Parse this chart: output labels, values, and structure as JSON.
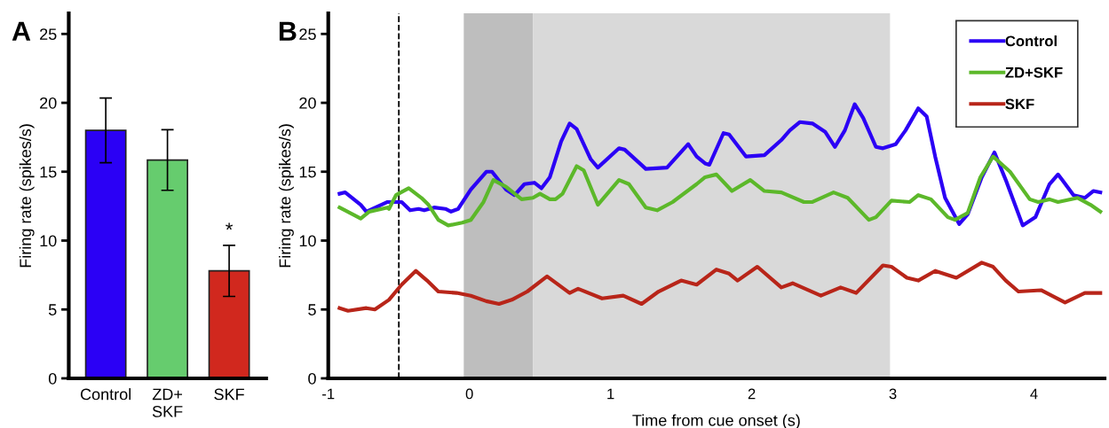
{
  "chart_data": [
    {
      "type": "bar",
      "title": "A",
      "ylabel": "Firing rate (spikes/s)",
      "categories": [
        "Control",
        "ZD+\nSKF",
        "SKF"
      ],
      "values": [
        18.0,
        15.85,
        7.8
      ],
      "errors": [
        2.35,
        2.2,
        1.85
      ],
      "colors": [
        "#2b00f5",
        "#66cc6e",
        "#d1281e"
      ],
      "ylim": [
        0,
        26.5
      ],
      "yticks": [
        0,
        5,
        10,
        15,
        20,
        25
      ],
      "grid": false,
      "annotations": [
        "*"
      ]
    },
    {
      "type": "line",
      "title": "B",
      "xlabel": "Time from cue onset (s)",
      "ylabel": "Firing rate (spikes/s)",
      "xlim": [
        -1,
        4.5
      ],
      "xticks": [
        -1,
        0,
        1,
        2,
        3,
        4
      ],
      "ylim": [
        0,
        26.5
      ],
      "yticks": [
        0,
        5,
        10,
        15,
        20,
        25
      ],
      "grid": false,
      "legend": "top right",
      "line_style": "solid",
      "marker": "none",
      "bands": [
        {
          "axis": "x",
          "from": -0.04,
          "to": 0.45,
          "color": "#bebebe"
        },
        {
          "axis": "x",
          "from": 0.45,
          "to": 2.98,
          "color": "#d9d9d9"
        }
      ],
      "ref_lines": [
        {
          "axis": "x",
          "value": -0.5,
          "color": "#000000",
          "line_style": "dashed"
        }
      ],
      "series": [
        {
          "name": "Control",
          "color": "#2b00f5",
          "x": [
            -0.92,
            -0.88,
            -0.77,
            -0.73,
            -0.58,
            -0.48,
            -0.42,
            -0.36,
            -0.32,
            -0.25,
            -0.17,
            -0.13,
            -0.08,
            0.01,
            0.12,
            0.16,
            0.26,
            0.32,
            0.39,
            0.46,
            0.51,
            0.57,
            0.65,
            0.71,
            0.76,
            0.86,
            0.91,
            1.06,
            1.1,
            1.25,
            1.4,
            1.55,
            1.61,
            1.67,
            1.7,
            1.8,
            1.84,
            1.96,
            2.09,
            2.21,
            2.27,
            2.34,
            2.43,
            2.52,
            2.59,
            2.66,
            2.73,
            2.79,
            2.88,
            2.93,
            3.02,
            3.09,
            3.18,
            3.24,
            3.3,
            3.37,
            3.47,
            3.53,
            3.63,
            3.72,
            3.8,
            3.92,
            4.01,
            4.11,
            4.17,
            4.2,
            4.28,
            4.36,
            4.42,
            4.47
          ],
          "values": [
            13.4,
            13.5,
            12.6,
            12.1,
            12.8,
            12.8,
            12.2,
            12.3,
            12.2,
            12.4,
            12.3,
            12.1,
            12.3,
            13.7,
            15.0,
            15.0,
            13.7,
            13.3,
            14.1,
            14.2,
            13.8,
            14.6,
            17.2,
            18.5,
            18.1,
            15.9,
            15.3,
            16.7,
            16.6,
            15.2,
            15.3,
            17.0,
            16.1,
            15.6,
            15.5,
            17.8,
            17.7,
            16.1,
            16.2,
            17.3,
            18.0,
            18.6,
            18.5,
            17.9,
            16.8,
            18.0,
            19.9,
            18.9,
            16.8,
            16.7,
            17.0,
            18.0,
            19.6,
            19.0,
            16.1,
            13.1,
            11.2,
            11.9,
            14.6,
            16.4,
            14.4,
            11.1,
            11.7,
            14.1,
            14.8,
            14.4,
            13.3,
            13.1,
            13.6,
            13.5
          ]
        },
        {
          "name": "ZD+SKF",
          "color": "#5cb82a",
          "x": [
            -0.92,
            -0.77,
            -0.71,
            -0.58,
            -0.57,
            -0.52,
            -0.43,
            -0.34,
            -0.29,
            -0.22,
            -0.15,
            -0.05,
            0.01,
            0.1,
            0.17,
            0.26,
            0.37,
            0.45,
            0.5,
            0.57,
            0.61,
            0.66,
            0.76,
            0.81,
            0.91,
            1.06,
            1.13,
            1.25,
            1.33,
            1.44,
            1.61,
            1.67,
            1.75,
            1.86,
            1.99,
            2.09,
            2.21,
            2.37,
            2.43,
            2.58,
            2.68,
            2.83,
            2.88,
            2.99,
            3.12,
            3.18,
            3.27,
            3.39,
            3.44,
            3.53,
            3.62,
            3.71,
            3.83,
            3.97,
            4.03,
            4.11,
            4.17,
            4.31,
            4.4,
            4.47
          ],
          "values": [
            12.4,
            11.6,
            12.1,
            12.4,
            12.3,
            13.3,
            13.8,
            13.1,
            12.6,
            11.5,
            11.1,
            11.3,
            11.5,
            12.8,
            14.4,
            13.9,
            13.0,
            13.1,
            13.4,
            13.0,
            13.0,
            13.4,
            15.4,
            15.1,
            12.6,
            14.4,
            14.1,
            12.4,
            12.2,
            12.8,
            14.1,
            14.6,
            14.8,
            13.6,
            14.4,
            13.6,
            13.5,
            12.8,
            12.8,
            13.5,
            13.1,
            11.5,
            11.7,
            12.9,
            12.8,
            13.3,
            13.0,
            11.7,
            11.5,
            12.0,
            14.6,
            16.1,
            15.0,
            13.0,
            12.8,
            13.0,
            12.8,
            13.1,
            12.6,
            12.1
          ]
        },
        {
          "name": "SKF",
          "color": "#b82519",
          "x": [
            -0.92,
            -0.86,
            -0.73,
            -0.67,
            -0.57,
            -0.48,
            -0.38,
            -0.3,
            -0.22,
            -0.09,
            0.01,
            0.12,
            0.21,
            0.3,
            0.41,
            0.55,
            0.71,
            0.77,
            0.94,
            1.09,
            1.22,
            1.34,
            1.5,
            1.61,
            1.75,
            1.84,
            1.9,
            2.04,
            2.21,
            2.29,
            2.49,
            2.63,
            2.74,
            2.93,
            2.99,
            3.1,
            3.18,
            3.3,
            3.45,
            3.63,
            3.71,
            3.8,
            3.89,
            4.05,
            4.22,
            4.36,
            4.47
          ],
          "values": [
            5.1,
            4.9,
            5.1,
            5.0,
            5.7,
            6.8,
            7.8,
            7.1,
            6.3,
            6.2,
            6.0,
            5.6,
            5.4,
            5.7,
            6.3,
            7.4,
            6.2,
            6.5,
            5.8,
            6.0,
            5.4,
            6.3,
            7.1,
            6.8,
            7.9,
            7.6,
            7.1,
            8.1,
            6.6,
            6.9,
            6.0,
            6.6,
            6.2,
            8.2,
            8.1,
            7.3,
            7.1,
            7.8,
            7.3,
            8.4,
            8.1,
            7.1,
            6.3,
            6.4,
            5.5,
            6.2,
            6.2
          ]
        }
      ]
    }
  ]
}
